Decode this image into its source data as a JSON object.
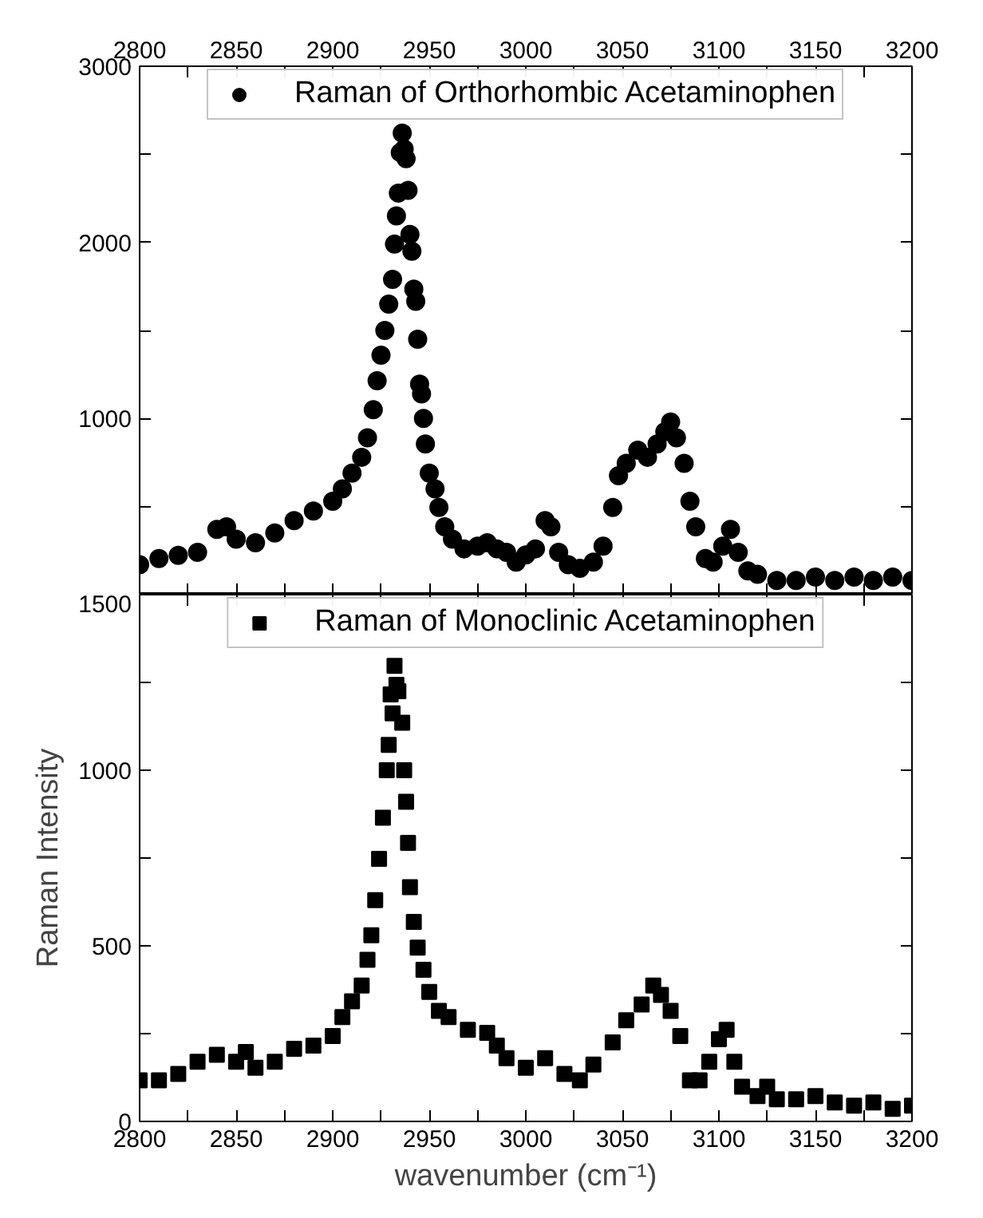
{
  "chart_data": [
    {
      "type": "scatter",
      "marker": "circle",
      "legend": "top",
      "xlim": [
        2800,
        3200
      ],
      "xticks": [
        2800,
        {
          "value": 2825,
          "label": null
        },
        2850,
        {
          "value": 2875,
          "label": null
        },
        2900,
        {
          "value": 2925,
          "label": null
        },
        2950,
        {
          "value": 2975,
          "label": null
        },
        3000,
        {
          "value": 3025,
          "label": null
        },
        3050,
        {
          "value": 3075,
          "label": null
        },
        3100,
        {
          "value": 3125,
          "label": null
        },
        3150,
        {
          "value": 3175,
          "label": null
        },
        3200
      ],
      "ylim": [
        0,
        3000
      ],
      "yticks": [
        {
          "value": 0,
          "label": null
        },
        {
          "value": 500,
          "label": null
        },
        1000,
        {
          "value": 1500,
          "label": null
        },
        2000,
        {
          "value": 2500,
          "label": null
        },
        3000
      ],
      "series": [
        {
          "name": "Raman of Orthorhombic Acetaminophen",
          "color": "#000000",
          "x": [
            2800,
            2810,
            2820,
            2830,
            2840,
            2845,
            2850,
            2860,
            2870,
            2880,
            2890,
            2900,
            2905,
            2910,
            2915,
            2918,
            2921,
            2923,
            2925,
            2927,
            2929,
            2931,
            2932,
            2933,
            2934,
            2935,
            2936,
            2937,
            2938,
            2939,
            2940,
            2941,
            2942,
            2943,
            2944,
            2945,
            2946,
            2947,
            2948,
            2950,
            2953,
            2955,
            2958,
            2962,
            2968,
            2975,
            2980,
            2985,
            2990,
            2995,
            3000,
            3005,
            3010,
            3013,
            3017,
            3022,
            3028,
            3035,
            3040,
            3045,
            3048,
            3052,
            3058,
            3063,
            3068,
            3072,
            3075,
            3078,
            3082,
            3085,
            3088,
            3093,
            3097,
            3102,
            3106,
            3110,
            3115,
            3120,
            3130,
            3140,
            3150,
            3160,
            3170,
            3180,
            3190,
            3200
          ],
          "values": [
            170,
            205,
            223,
            240,
            370,
            385,
            315,
            295,
            350,
            420,
            475,
            530,
            600,
            690,
            780,
            890,
            1050,
            1215,
            1360,
            1500,
            1650,
            1790,
            1990,
            2150,
            2280,
            2510,
            2620,
            2530,
            2475,
            2295,
            2045,
            1950,
            1735,
            1665,
            1450,
            1195,
            1140,
            1000,
            855,
            690,
            600,
            495,
            385,
            315,
            260,
            275,
            295,
            260,
            240,
            185,
            225,
            260,
            420,
            385,
            240,
            170,
            150,
            185,
            275,
            495,
            675,
            745,
            820,
            780,
            855,
            925,
            980,
            890,
            745,
            530,
            385,
            205,
            185,
            275,
            370,
            240,
            135,
            115,
            80,
            80,
            100,
            80,
            100,
            80,
            100,
            80
          ]
        }
      ]
    },
    {
      "type": "scatter",
      "marker": "square",
      "legend": "top",
      "xlabel": "wavenumber (cm⁻¹)",
      "ylabel": "Raman Intensity",
      "xlim": [
        2800,
        3200
      ],
      "xticks": [
        2800,
        {
          "value": 2825,
          "label": null
        },
        2850,
        {
          "value": 2875,
          "label": null
        },
        2900,
        {
          "value": 2925,
          "label": null
        },
        2950,
        {
          "value": 2975,
          "label": null
        },
        3000,
        {
          "value": 3025,
          "label": null
        },
        3050,
        {
          "value": 3075,
          "label": null
        },
        3100,
        {
          "value": 3125,
          "label": null
        },
        3150,
        {
          "value": 3175,
          "label": null
        },
        3200
      ],
      "ylim": [
        0,
        1500
      ],
      "yticks": [
        0,
        {
          "value": 250,
          "label": null
        },
        500,
        {
          "value": 750,
          "label": null
        },
        1000,
        {
          "value": 1250,
          "label": null
        },
        1500
      ],
      "series": [
        {
          "name": "Raman of Monoclinic Acetaminophen",
          "color": "#000000",
          "x": [
            2800,
            2810,
            2820,
            2830,
            2840,
            2850,
            2855,
            2860,
            2870,
            2880,
            2890,
            2900,
            2905,
            2910,
            2915,
            2918,
            2920,
            2922,
            2924,
            2926,
            2928,
            2929,
            2930,
            2931,
            2932,
            2933,
            2934,
            2936,
            2937,
            2938,
            2939,
            2940,
            2942,
            2944,
            2947,
            2950,
            2955,
            2960,
            2970,
            2980,
            2985,
            2990,
            3000,
            3010,
            3020,
            3028,
            3035,
            3045,
            3052,
            3060,
            3066,
            3070,
            3075,
            3080,
            3085,
            3090,
            3095,
            3100,
            3104,
            3108,
            3112,
            3120,
            3125,
            3130,
            3140,
            3150,
            3160,
            3170,
            3180,
            3190,
            3200
          ],
          "values": [
            117,
            117,
            135,
            170,
            190,
            170,
            198,
            153,
            170,
            207,
            216,
            243,
            297,
            342,
            387,
            460,
            530,
            630,
            748,
            865,
            1000,
            1072,
            1216,
            1162,
            1297,
            1243,
            1225,
            1135,
            1000,
            910,
            793,
            667,
            568,
            495,
            432,
            369,
            315,
            297,
            261,
            252,
            216,
            180,
            153,
            180,
            135,
            117,
            162,
            225,
            288,
            333,
            387,
            360,
            315,
            243,
            117,
            117,
            170,
            234,
            261,
            170,
            99,
            72,
            99,
            63,
            63,
            72,
            54,
            45,
            54,
            36,
            45
          ]
        }
      ]
    }
  ]
}
